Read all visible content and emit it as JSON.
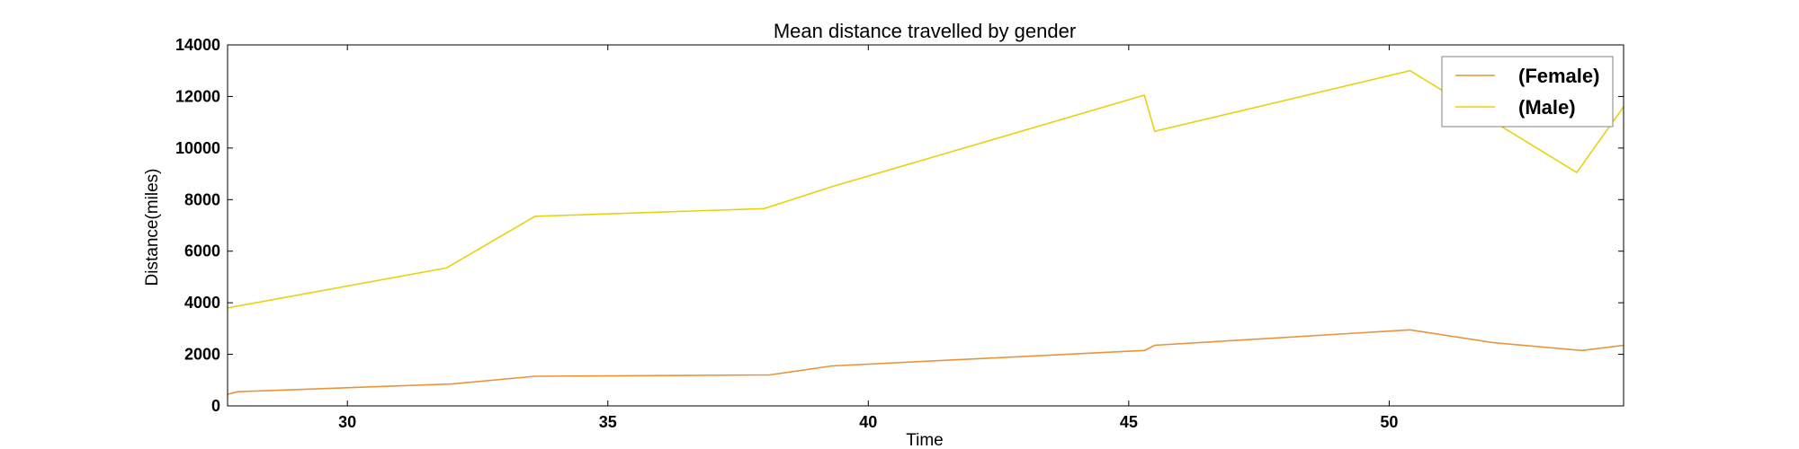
{
  "chart_data": {
    "type": "line",
    "title": "Mean distance travelled by gender",
    "xlabel": "Time",
    "ylabel": "Distance(miles)",
    "xlim": [
      27.7,
      54.5
    ],
    "ylim": [
      0,
      14000
    ],
    "xticks": [
      30,
      35,
      40,
      45,
      50
    ],
    "yticks": [
      0,
      2000,
      4000,
      6000,
      8000,
      10000,
      12000,
      14000
    ],
    "grid": false,
    "legend_position": "top-right",
    "series": [
      {
        "name": "(Female)",
        "color": "#e8943a",
        "x": [
          27.7,
          27.9,
          32.0,
          33.6,
          38.1,
          39.3,
          45.3,
          45.5,
          50.4,
          52.0,
          53.7,
          54.5
        ],
        "y": [
          450,
          550,
          850,
          1150,
          1200,
          1550,
          2150,
          2350,
          2950,
          2450,
          2150,
          2350
        ]
      },
      {
        "name": "(Male)",
        "color": "#e8d20d",
        "x": [
          27.7,
          31.9,
          33.6,
          38.0,
          39.3,
          45.3,
          45.5,
          50.4,
          53.6,
          54.5
        ],
        "y": [
          3800,
          5350,
          7350,
          7650,
          8500,
          12050,
          10650,
          13000,
          9050,
          11600
        ]
      }
    ]
  }
}
